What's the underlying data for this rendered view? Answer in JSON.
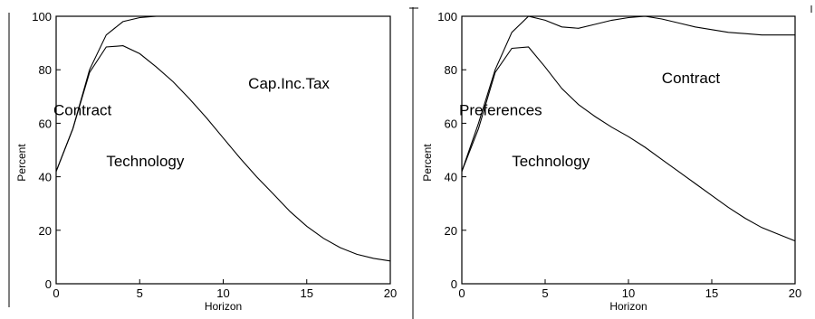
{
  "chart_data": [
    {
      "type": "line",
      "xlabel": "Horizon",
      "ylabel": "Percent",
      "xlim": [
        0,
        20
      ],
      "ylim": [
        0,
        100
      ],
      "xticks": [
        0,
        5,
        10,
        15,
        20
      ],
      "yticks": [
        0,
        20,
        40,
        60,
        80,
        100
      ],
      "grid": false,
      "x": [
        0,
        1,
        2,
        3,
        4,
        5,
        6,
        7,
        8,
        9,
        10,
        11,
        12,
        13,
        14,
        15,
        16,
        17,
        18,
        19,
        20
      ],
      "series": [
        {
          "values": [
            42,
            58,
            80,
            93,
            98,
            99.5,
            100,
            100,
            100,
            100,
            100,
            100,
            100,
            100,
            100,
            100,
            100,
            100,
            100,
            100,
            100
          ]
        },
        {
          "values": [
            42,
            58,
            79,
            88.5,
            89,
            86,
            81,
            75.5,
            69,
            62,
            54.5,
            47,
            40,
            33.5,
            27,
            21.5,
            17,
            13.5,
            11,
            9.5,
            8.5
          ]
        }
      ],
      "annotations": [
        {
          "text": "Contract",
          "x": 0,
          "y": 63
        },
        {
          "text": "Technology",
          "x": 3,
          "y": 44
        },
        {
          "text": "Cap.Inc.Tax",
          "x": 11.5,
          "y": 73
        }
      ]
    },
    {
      "type": "line",
      "xlabel": "Horizon",
      "ylabel": "Percent",
      "xlim": [
        0,
        20
      ],
      "ylim": [
        0,
        100
      ],
      "xticks": [
        0,
        5,
        10,
        15,
        20
      ],
      "yticks": [
        0,
        20,
        40,
        60,
        80,
        100
      ],
      "grid": false,
      "x": [
        0,
        1,
        2,
        3,
        4,
        5,
        6,
        7,
        8,
        9,
        10,
        11,
        12,
        13,
        14,
        15,
        16,
        17,
        18,
        19,
        20
      ],
      "series": [
        {
          "values": [
            42,
            60,
            80,
            94,
            100,
            98.5,
            96,
            95.5,
            97,
            98.5,
            99.5,
            100,
            99,
            97.5,
            96,
            95,
            94,
            93.5,
            93,
            93,
            93
          ]
        },
        {
          "values": [
            42,
            58,
            79,
            88,
            88.5,
            81,
            73,
            67,
            62.5,
            58.5,
            55,
            51,
            46.5,
            42,
            37.5,
            33,
            28.5,
            24.5,
            21,
            18.5,
            16
          ]
        }
      ],
      "annotations": [
        {
          "text": "Preferences",
          "x": 0,
          "y": 63
        },
        {
          "text": "Technology",
          "x": 3,
          "y": 44
        },
        {
          "text": "Contract",
          "x": 12,
          "y": 75
        }
      ]
    }
  ]
}
